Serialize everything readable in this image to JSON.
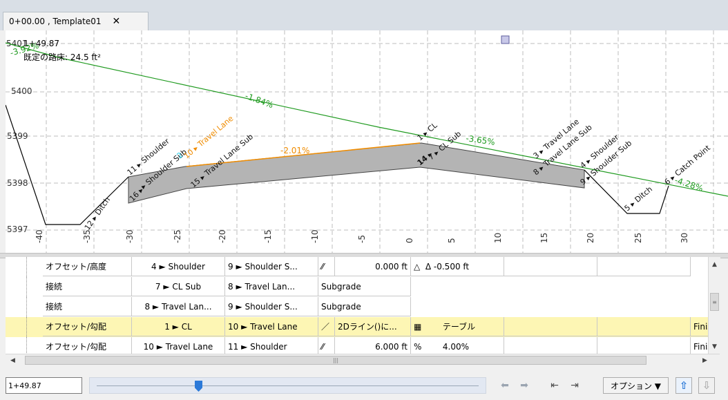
{
  "tab": {
    "label": "0+00.00 , Template01",
    "close": "✕"
  },
  "view": {
    "station": "1+49.87",
    "area": "既定の路床: 24.5 ft²",
    "elev_labels": [
      "5401",
      "5400",
      "5399",
      "5398",
      "5397"
    ],
    "offset_labels": [
      "-40",
      "-35",
      "-30",
      "-25",
      "-20",
      "-15",
      "-10",
      "-5",
      "0",
      "5",
      "10",
      "15",
      "20",
      "25",
      "30"
    ],
    "slopes": [
      "-3.92%",
      "-1.84%",
      "-2.01%",
      "-3.65%",
      "-4.28%"
    ],
    "points": [
      "12 ▸ Ditch",
      "16 ▸",
      "11 ▸ Shoulder",
      "▸ Shoulder Sub",
      "2",
      "10 ▸ Travel Lane",
      "15 ▸ Travel Lane Sub",
      "1 ▸ CL",
      "14 ▸",
      "7 ▸ CL Sub",
      "3 ▸ Travel Lane",
      "8 ▸ Travel Lane Sub",
      "4 ▸ Shoulder",
      "9 ▸ Shoulder Sub",
      "5 ▸ Ditch",
      "6 ▸ Catch Point"
    ],
    "colors": {
      "green": "#1f9a1f",
      "orange": "#f08c00",
      "dark": "#000000",
      "grey": "#b4b4b4",
      "grid": "#bdbdbd",
      "cyan": "#1ec8e6"
    }
  },
  "grid_rows": [
    {
      "type": "オフセット/高度",
      "p1": "4 ► Shoulder",
      "p2": "9 ► Shoulder S...",
      "icon": "⁄⁄",
      "v1": "0.000 ft",
      "icon2": "△",
      "v2": "Δ -0.500 ft",
      "end": ""
    },
    {
      "type": "接続",
      "p1": "7 ► CL Sub",
      "p2": "8 ► Travel Lan...",
      "v1": "Subgrade"
    },
    {
      "type": "接続",
      "p1": "8 ► Travel Lan...",
      "p2": "9 ► Shoulder S...",
      "v1": "Subgrade"
    },
    {
      "type": "オフセット/勾配",
      "p1": "1 ► CL",
      "p2": "10 ► Travel Lane",
      "icon": "／",
      "v1": "2Dライン()に...",
      "icon2": "▦",
      "v2": "テーブル",
      "end": "Finis"
    },
    {
      "type": "オフセット/勾配",
      "p1": "10 ► Travel Lane",
      "p2": "11 ► Shoulder",
      "icon": "⁄⁄",
      "v1": "6.000 ft",
      "icon2": "%",
      "v2": "4.00%",
      "end": "Finis"
    }
  ],
  "bottom": {
    "station_value": "1+49.87",
    "slider_fraction": 0.27,
    "options_label": "オプション ▼",
    "icons": [
      "arrow-left",
      "arrow-right",
      "go-first",
      "go-last",
      "up-arrow",
      "down-arrow"
    ]
  }
}
